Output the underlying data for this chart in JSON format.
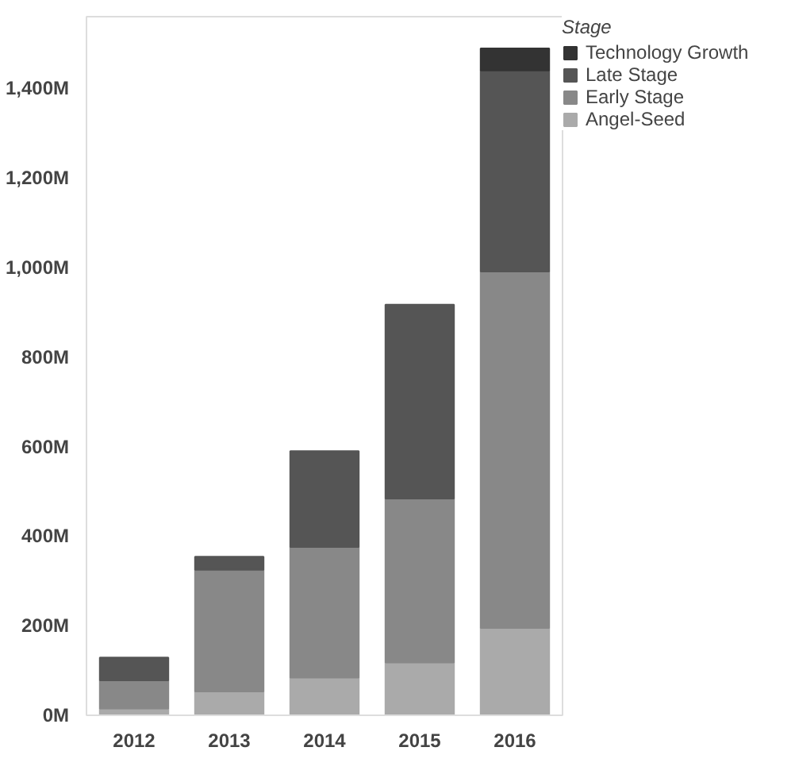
{
  "chart_data": {
    "type": "bar",
    "stacked": true,
    "legend_title": "Stage",
    "legend": "top right",
    "grid": false,
    "categories": [
      "2012",
      "2013",
      "2014",
      "2015",
      "2016"
    ],
    "ylim": [
      0,
      1560
    ],
    "yticks": [
      {
        "value": 0,
        "label": "0M"
      },
      {
        "value": 200,
        "label": "200M"
      },
      {
        "value": 400,
        "label": "400M"
      },
      {
        "value": 600,
        "label": "600M"
      },
      {
        "value": 800,
        "label": "800M"
      },
      {
        "value": 1000,
        "label": "1,000M"
      },
      {
        "value": 1200,
        "label": "1,200M"
      },
      {
        "value": 1400,
        "label": "1,400M"
      }
    ],
    "series": [
      {
        "name": "Angel-Seed",
        "color": "#aaaaaa",
        "values": [
          15,
          53,
          84,
          118,
          195
        ]
      },
      {
        "name": "Early Stage",
        "color": "#888888",
        "values": [
          63,
          272,
          292,
          366,
          796
        ]
      },
      {
        "name": "Late Stage",
        "color": "#555555",
        "values": [
          51,
          29,
          214,
          433,
          449
        ]
      },
      {
        "name": "Technology Growth",
        "color": "#333333",
        "values": [
          null,
          null,
          null,
          null,
          49
        ]
      }
    ]
  }
}
